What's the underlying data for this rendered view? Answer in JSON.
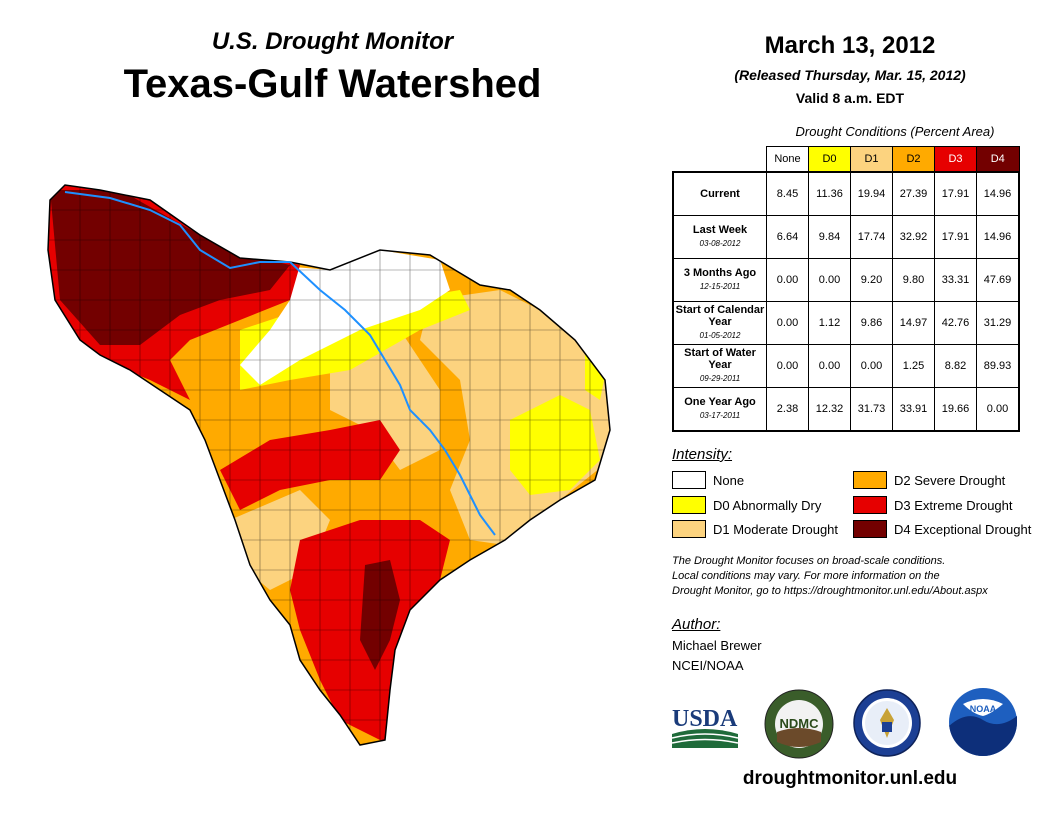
{
  "header": {
    "subtitle": "U.S. Drought Monitor",
    "title": "Texas-Gulf Watershed",
    "date": "March 13, 2012",
    "released": "(Released Thursday, Mar. 15, 2012)",
    "valid": "Valid 8 a.m. EDT"
  },
  "conditions": {
    "caption": "Drought Conditions (Percent Area)",
    "columns": [
      "None",
      "D0",
      "D1",
      "D2",
      "D3",
      "D4"
    ],
    "rows": [
      {
        "label": "Current",
        "date": "",
        "values": [
          "8.45",
          "11.36",
          "19.94",
          "27.39",
          "17.91",
          "14.96"
        ]
      },
      {
        "label": "Last Week",
        "date": "03-08-2012",
        "values": [
          "6.64",
          "9.84",
          "17.74",
          "32.92",
          "17.91",
          "14.96"
        ]
      },
      {
        "label": "3 Months Ago",
        "date": "12-15-2011",
        "values": [
          "0.00",
          "0.00",
          "9.20",
          "9.80",
          "33.31",
          "47.69"
        ]
      },
      {
        "label": "Start of Calendar Year",
        "date": "01-05-2012",
        "values": [
          "0.00",
          "1.12",
          "9.86",
          "14.97",
          "42.76",
          "31.29"
        ]
      },
      {
        "label": "Start of Water Year",
        "date": "09-29-2011",
        "values": [
          "0.00",
          "0.00",
          "0.00",
          "1.25",
          "8.82",
          "89.93"
        ]
      },
      {
        "label": "One Year Ago",
        "date": "03-17-2011",
        "values": [
          "2.38",
          "12.32",
          "31.73",
          "33.91",
          "19.66",
          "0.00"
        ]
      }
    ]
  },
  "legend": {
    "title": "Intensity:",
    "items": [
      {
        "label": "None",
        "color": "#ffffff"
      },
      {
        "label": "D0 Abnormally Dry",
        "color": "#ffff00"
      },
      {
        "label": "D1 Moderate Drought",
        "color": "#fcd37f"
      },
      {
        "label": "D2 Severe Drought",
        "color": "#ffaa00"
      },
      {
        "label": "D3 Extreme Drought",
        "color": "#e60000"
      },
      {
        "label": "D4 Exceptional Drought",
        "color": "#730000"
      }
    ]
  },
  "note": {
    "line1": "The Drought Monitor focuses on broad-scale conditions.",
    "line2": "Local conditions may vary. For more information on the",
    "line3": "Drought Monitor, go to https://droughtmonitor.unl.edu/About.aspx"
  },
  "author": {
    "title": "Author:",
    "name": "Michael Brewer",
    "org": "NCEI/NOAA"
  },
  "logos": {
    "usda": "USDA",
    "ndmc": "NDMC",
    "noaa": "NOAA"
  },
  "footer": {
    "website": "droughtmonitor.unl.edu"
  },
  "colors": {
    "none": "#ffffff",
    "d0": "#ffff00",
    "d1": "#fcd37f",
    "d2": "#ffaa00",
    "d3": "#e60000",
    "d4": "#730000",
    "river": "#1e90ff"
  }
}
